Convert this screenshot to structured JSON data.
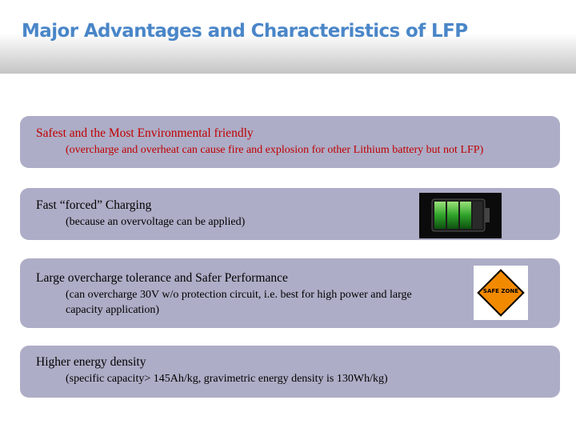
{
  "title": "Major Advantages and Characteristics of LFP",
  "items": [
    {
      "heading": "Safest and the Most Environmental friendly",
      "detail": "(overcharge and overheat can cause fire and explosion for other Lithium battery but not LFP)"
    },
    {
      "heading": "Fast “forced” Charging",
      "detail": "(because an overvoltage can be applied)"
    },
    {
      "heading": "Large overcharge tolerance and Safer Performance",
      "detail": "(can overcharge 30V w/o protection circuit, i.e. best for high power and large capacity application)"
    },
    {
      "heading": "Higher energy density",
      "detail": "(specific capacity> 145Ah/kg, gravimetric energy density is 130Wh/kg)"
    }
  ],
  "sign_text": "SAFE ZONE"
}
